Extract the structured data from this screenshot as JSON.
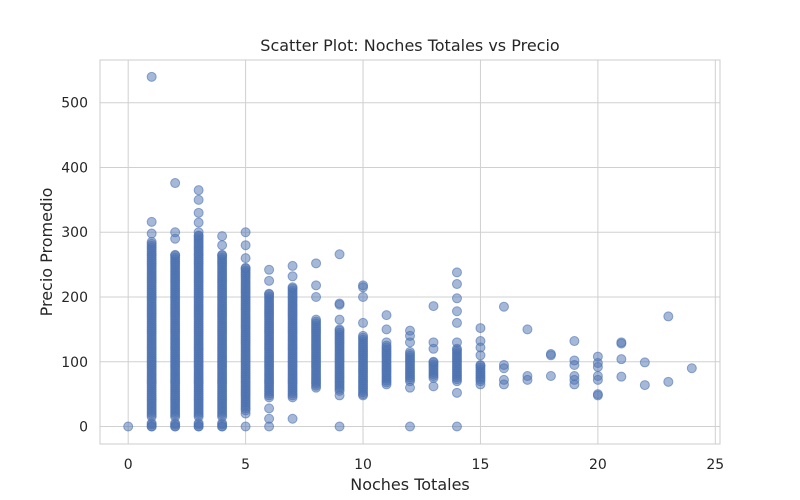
{
  "chart_data": {
    "type": "scatter",
    "title": "Scatter Plot: Noches Totales vs Precio",
    "xlabel": "Noches Totales",
    "ylabel": "Precio Promedio",
    "xlim": [
      -1.2,
      25.2
    ],
    "ylim": [
      -27,
      566
    ],
    "xticks": [
      0,
      5,
      10,
      15,
      20,
      25
    ],
    "yticks": [
      0,
      100,
      200,
      300,
      400,
      500
    ],
    "grid": true,
    "color": "#4c72b0",
    "columns": [
      {
        "x": 0,
        "ranges": [
          [
            0,
            0
          ]
        ],
        "points": []
      },
      {
        "x": 1,
        "ranges": [
          [
            0,
            5
          ],
          [
            15,
            285
          ]
        ],
        "points": [
          0,
          298,
          316,
          540
        ]
      },
      {
        "x": 2,
        "ranges": [
          [
            0,
            5
          ],
          [
            15,
            265
          ]
        ],
        "points": [
          0,
          290,
          300,
          376
        ]
      },
      {
        "x": 3,
        "ranges": [
          [
            0,
            5
          ],
          [
            15,
            295
          ]
        ],
        "points": [
          0,
          300,
          315,
          330,
          350,
          365
        ]
      },
      {
        "x": 4,
        "ranges": [
          [
            0,
            5
          ],
          [
            15,
            265
          ]
        ],
        "points": [
          0,
          280,
          294
        ]
      },
      {
        "x": 5,
        "ranges": [
          [
            25,
            245
          ]
        ],
        "points": [
          0,
          20,
          260,
          280,
          300
        ]
      },
      {
        "x": 6,
        "ranges": [
          [
            45,
            205
          ]
        ],
        "points": [
          0,
          12,
          28,
          225,
          242
        ]
      },
      {
        "x": 7,
        "ranges": [
          [
            45,
            215
          ]
        ],
        "points": [
          12,
          232,
          248
        ]
      },
      {
        "x": 8,
        "ranges": [
          [
            60,
            165
          ]
        ],
        "points": [
          200,
          218,
          252
        ]
      },
      {
        "x": 9,
        "ranges": [
          [
            55,
            150
          ]
        ],
        "points": [
          0,
          48,
          165,
          188,
          190,
          266
        ]
      },
      {
        "x": 10,
        "ranges": [
          [
            50,
            140
          ]
        ],
        "points": [
          48,
          160,
          200,
          215,
          218
        ]
      },
      {
        "x": 11,
        "ranges": [
          [
            65,
            125
          ]
        ],
        "points": [
          130,
          150,
          172
        ]
      },
      {
        "x": 12,
        "ranges": [
          [
            70,
            115
          ]
        ],
        "points": [
          0,
          60,
          130,
          140,
          148
        ]
      },
      {
        "x": 13,
        "ranges": [
          [
            75,
            100
          ]
        ],
        "points": [
          62,
          120,
          130,
          186
        ]
      },
      {
        "x": 14,
        "ranges": [
          [
            70,
            120
          ]
        ],
        "points": [
          0,
          52,
          130,
          160,
          178,
          198,
          220,
          238
        ]
      },
      {
        "x": 15,
        "ranges": [
          [
            70,
            95
          ]
        ],
        "points": [
          65,
          110,
          122,
          132,
          152
        ]
      },
      {
        "x": 16,
        "ranges": [],
        "points": [
          65,
          72,
          90,
          95,
          185
        ]
      },
      {
        "x": 17,
        "ranges": [],
        "points": [
          72,
          78,
          150
        ]
      },
      {
        "x": 18,
        "ranges": [],
        "points": [
          78,
          110,
          112
        ]
      },
      {
        "x": 19,
        "ranges": [],
        "points": [
          65,
          72,
          78,
          95,
          102,
          132
        ]
      },
      {
        "x": 20,
        "ranges": [],
        "points": [
          48,
          50,
          72,
          78,
          92,
          98,
          108
        ]
      },
      {
        "x": 21,
        "ranges": [],
        "points": [
          77,
          104,
          128,
          130
        ]
      },
      {
        "x": 22,
        "ranges": [],
        "points": [
          64,
          99
        ]
      },
      {
        "x": 23,
        "ranges": [],
        "points": [
          69,
          170
        ]
      },
      {
        "x": 24,
        "ranges": [],
        "points": [
          90
        ]
      }
    ]
  }
}
